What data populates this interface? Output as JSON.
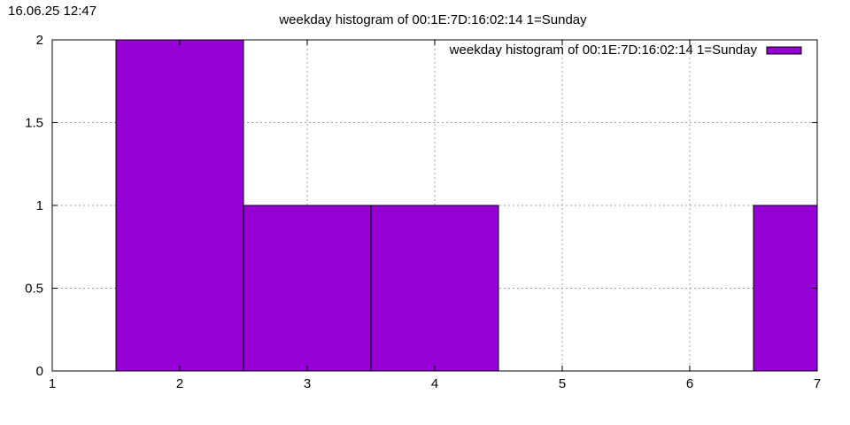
{
  "timestamp": "16.06.25 12:47",
  "chart_data": {
    "type": "bar",
    "title": "weekday histogram of 00:1E:7D:16:02:14 1=Sunday",
    "xlabel": "",
    "ylabel": "",
    "xlim": [
      1,
      7
    ],
    "ylim": [
      0,
      2
    ],
    "x_ticks": [
      "1",
      "2",
      "3",
      "4",
      "5",
      "6",
      "7"
    ],
    "y_ticks": [
      "0",
      "0.5",
      "1",
      "1.5",
      "2"
    ],
    "bar_width": 1,
    "grid": true,
    "legend_position": "top-right",
    "series": [
      {
        "name": "weekday histogram of 00:1E:7D:16:02:14 1=Sunday",
        "color": "#9400d3",
        "points": [
          {
            "x": 2,
            "y": 2
          },
          {
            "x": 3,
            "y": 1
          },
          {
            "x": 4,
            "y": 1
          },
          {
            "x": 7,
            "y": 1
          }
        ]
      }
    ]
  }
}
